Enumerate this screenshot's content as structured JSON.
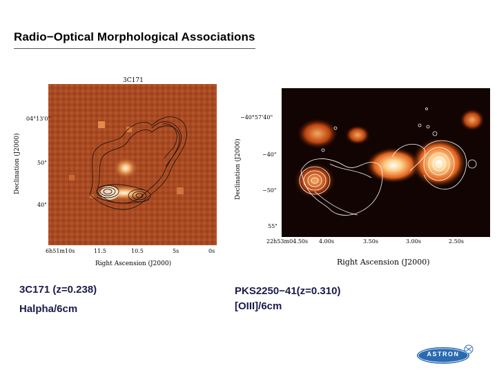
{
  "slide": {
    "title": "Radio−Optical Morphological Associations"
  },
  "left_panel": {
    "label": "3C171",
    "ylabel": "Declination (J2000)",
    "xlabel": "Right Ascension (J2000)",
    "y_ticks": [
      "04°13'0\"",
      "50\"",
      "40\""
    ],
    "x_ticks": [
      "6h51m10s",
      "11.5",
      "10.5",
      "5s",
      "0s"
    ],
    "caption_line1": "3C171 (z=0.238)",
    "caption_line2": "Halpha/6cm"
  },
  "right_panel": {
    "ylabel": "Declination (J2000)",
    "xlabel": "Right Ascension (J2000)",
    "y_ticks": [
      "−40°57'40\"",
      "−40\"",
      "−50\"",
      "55\""
    ],
    "x_ticks": [
      "22h53m04.50s",
      "4.00s",
      "3.50s",
      "3.00s",
      "2.50s"
    ],
    "caption_line1": "PKS2250−41(z=0.310)",
    "caption_line2": "[OIII]/6cm"
  },
  "logo": {
    "text": "ASTRON"
  }
}
